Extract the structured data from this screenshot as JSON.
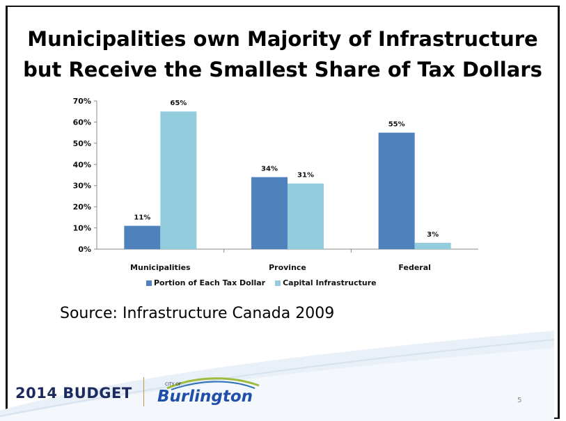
{
  "slide": {
    "title_line1": "Municipalities own Majority of Infrastructure",
    "title_line2": "but Receive the Smallest Share of Tax Dollars",
    "source": "Source: Infrastructure Canada 2009",
    "footer_budget": "2014 BUDGET",
    "footer_city_of": "CITY OF",
    "footer_city": "Burlington",
    "page_number": "5"
  },
  "chart_data": {
    "type": "bar",
    "categories": [
      "Municipalities",
      "Province",
      "Federal"
    ],
    "series": [
      {
        "name": "Portion of Each Tax Dollar",
        "values": [
          11,
          34,
          55
        ],
        "labels": [
          "11%",
          "34%",
          "55%"
        ],
        "color": "#4f81bd"
      },
      {
        "name": "Capital Infrastructure",
        "values": [
          65,
          31,
          3
        ],
        "labels": [
          "65%",
          "31%",
          "3%"
        ],
        "color": "#93cddd"
      }
    ],
    "ylim": [
      0,
      70
    ],
    "yticks": [
      0,
      10,
      20,
      30,
      40,
      50,
      60,
      70
    ],
    "ytick_labels": [
      "0%",
      "10%",
      "20%",
      "30%",
      "40%",
      "50%",
      "60%",
      "70%"
    ],
    "grid": false,
    "legend": "bottom"
  }
}
